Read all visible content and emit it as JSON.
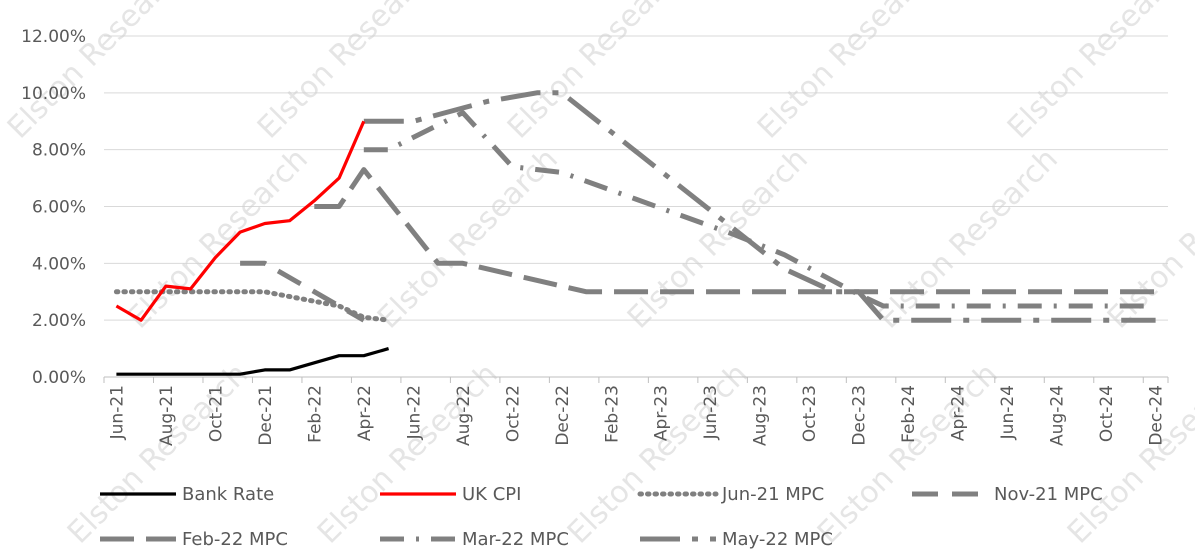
{
  "watermark_text": "Elston Research",
  "chart_data": {
    "type": "line",
    "title": "",
    "xlabel": "",
    "ylabel": "",
    "ylim": [
      0,
      0.12
    ],
    "y_ticks": [
      "0.00%",
      "2.00%",
      "4.00%",
      "6.00%",
      "8.00%",
      "10.00%",
      "12.00%"
    ],
    "y_tick_values": [
      0,
      0.02,
      0.04,
      0.06,
      0.08,
      0.1,
      0.12
    ],
    "x_start": "2021-06",
    "x_end": "2024-12",
    "x_tick_labels": [
      "Jun-21",
      "Aug-21",
      "Oct-21",
      "Dec-21",
      "Feb-22",
      "Apr-22",
      "Jun-22",
      "Aug-22",
      "Oct-22",
      "Dec-22",
      "Feb-23",
      "Apr-23",
      "Jun-23",
      "Aug-23",
      "Oct-23",
      "Dec-23",
      "Feb-24",
      "Apr-24",
      "Jun-24",
      "Aug-24",
      "Oct-24",
      "Dec-24"
    ],
    "gridlines": true,
    "legend_position": "bottom",
    "series": [
      {
        "name": "Bank Rate",
        "color": "#000000",
        "style": "solid",
        "x": [
          "2021-06",
          "2021-07",
          "2021-08",
          "2021-09",
          "2021-10",
          "2021-11",
          "2021-12",
          "2022-01",
          "2022-02",
          "2022-03",
          "2022-04",
          "2022-05"
        ],
        "values": [
          0.001,
          0.001,
          0.001,
          0.001,
          0.001,
          0.001,
          0.0025,
          0.0025,
          0.005,
          0.0075,
          0.0075,
          0.01
        ]
      },
      {
        "name": "UK CPI",
        "color": "#ff0000",
        "style": "solid",
        "x": [
          "2021-06",
          "2021-07",
          "2021-08",
          "2021-09",
          "2021-10",
          "2021-11",
          "2021-12",
          "2022-01",
          "2022-02",
          "2022-03",
          "2022-04"
        ],
        "values": [
          0.025,
          0.02,
          0.032,
          0.031,
          0.042,
          0.051,
          0.054,
          0.055,
          0.062,
          0.07,
          0.09
        ]
      },
      {
        "name": "Jun-21 MPC",
        "color": "#808080",
        "style": "dotted",
        "x": [
          "2021-06",
          "2021-09",
          "2021-12",
          "2022-03",
          "2022-04",
          "2022-05"
        ],
        "values": [
          0.03,
          0.03,
          0.03,
          0.025,
          0.021,
          0.02
        ]
      },
      {
        "name": "Nov-21 MPC",
        "color": "#808080",
        "style": "dashed",
        "x": [
          "2021-11",
          "2021-12",
          "2022-03",
          "2022-04"
        ],
        "values": [
          0.04,
          0.04,
          0.025,
          0.02
        ]
      },
      {
        "name": "Feb-22 MPC",
        "color": "#808080",
        "style": "longdash",
        "x": [
          "2022-02",
          "2022-03",
          "2022-04",
          "2022-07",
          "2022-08",
          "2022-12",
          "2023-01",
          "2024-12"
        ],
        "values": [
          0.06,
          0.06,
          0.073,
          0.04,
          0.04,
          0.032,
          0.03,
          0.03
        ]
      },
      {
        "name": "Mar-22 MPC",
        "color": "#808080",
        "style": "dashdot",
        "x": [
          "2022-04",
          "2022-05",
          "2022-08",
          "2022-10",
          "2022-12",
          "2023-07",
          "2023-09",
          "2023-12",
          "2024-01",
          "2024-12"
        ],
        "values": [
          0.08,
          0.08,
          0.093,
          0.074,
          0.072,
          0.05,
          0.043,
          0.029,
          0.025,
          0.025
        ]
      },
      {
        "name": "May-22 MPC",
        "color": "#808080",
        "style": "dashdotlong",
        "x": [
          "2022-04",
          "2022-06",
          "2022-09",
          "2022-11",
          "2022-12",
          "2023-09",
          "2023-11",
          "2023-12",
          "2024-01",
          "2024-12"
        ],
        "values": [
          0.09,
          0.09,
          0.097,
          0.1,
          0.1,
          0.038,
          0.03,
          0.03,
          0.02,
          0.02
        ]
      }
    ]
  }
}
